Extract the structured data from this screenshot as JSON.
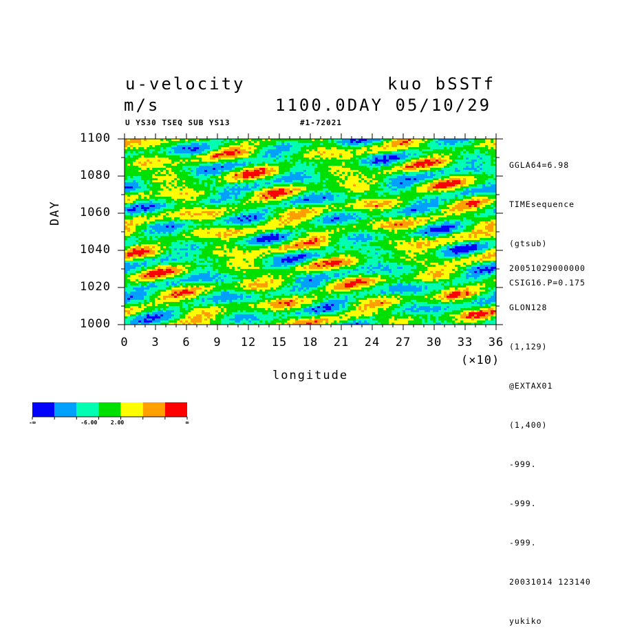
{
  "header": {
    "title_left": "u-velocity",
    "units": "m/s",
    "title_right": "kuo bSSTf",
    "time_label": "1100.0DAY 05/10/29",
    "sub_left": "U YS30 TSEQ SUB YS13",
    "sub_mid": "#1-72021"
  },
  "side_info": {
    "top": [
      "GGLA64=6.98",
      "TIMEsequence",
      "(gtsub)",
      "CSIG16.P=0.175"
    ],
    "bottom": [
      "20051029000000",
      "GLON128",
      "(1,129)",
      "@EXTAX01",
      "(1,400)",
      "-999.",
      "-999.",
      "-999.",
      "20031014 123140",
      "yukiko"
    ]
  },
  "chart_data": {
    "type": "heatmap",
    "title": "u-velocity",
    "xlabel": "longitude",
    "ylabel": "DAY",
    "x_multiplier_label": "(×10)",
    "xlim": [
      0,
      36
    ],
    "ylim": [
      1000,
      1100
    ],
    "x_ticks": [
      "0",
      "3",
      "6",
      "9",
      "12",
      "15",
      "18",
      "21",
      "24",
      "27",
      "30",
      "33",
      "36"
    ],
    "y_ticks": [
      "1000",
      "1020",
      "1040",
      "1060",
      "1080",
      "1100"
    ],
    "colorbar": {
      "colors": [
        "#0000ff",
        "#00a0ff",
        "#00ffb0",
        "#00e000",
        "#ffff00",
        "#ffa000",
        "#ff0000"
      ],
      "labels": [
        "-∞",
        "-6.00",
        "2.00",
        "∞"
      ]
    }
  }
}
